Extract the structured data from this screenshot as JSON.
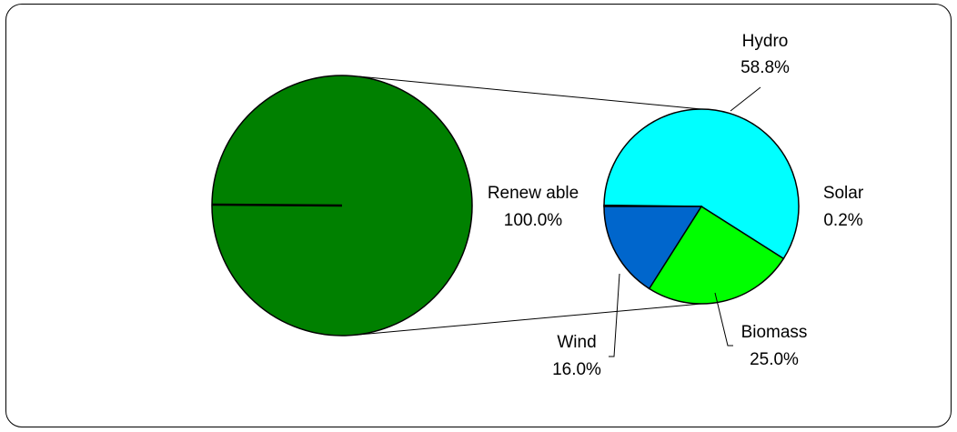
{
  "chart_data": {
    "type": "pie",
    "subtype": "pie-of-pie",
    "title": "",
    "primary": {
      "slices": [
        {
          "label": "Renew able",
          "value": 100.0,
          "display": "100.0%",
          "color": "#008000"
        }
      ]
    },
    "secondary": {
      "slices": [
        {
          "label": "Hydro",
          "value": 58.8,
          "display": "58.8%",
          "color": "#00FFFF"
        },
        {
          "label": "Biomass",
          "value": 25.0,
          "display": "25.0%",
          "color": "#00FF00"
        },
        {
          "label": "Wind",
          "value": 16.0,
          "display": "16.0%",
          "color": "#0066CC"
        },
        {
          "label": "Solar",
          "value": 0.2,
          "display": "0.2%",
          "color": "#008000"
        }
      ]
    },
    "legend": "none"
  }
}
